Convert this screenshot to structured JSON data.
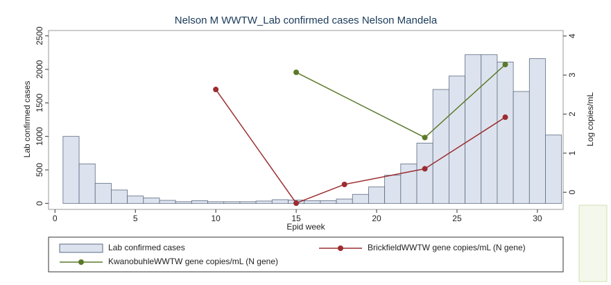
{
  "chart_data": {
    "type": "bar-line",
    "title": "Nelson M WWTW_Lab confirmed cases Nelson Mandela",
    "xlabel": "Epid week",
    "ylabel": "Lab confirmed cases",
    "y2label": "Log copies/mL",
    "xlim": [
      -0.4,
      31.6
    ],
    "xticks": [
      0,
      5,
      10,
      15,
      20,
      25,
      30
    ],
    "ylim": [
      -90,
      2580
    ],
    "yticks": [
      0,
      500,
      1000,
      1500,
      2000,
      2500
    ],
    "y2lim": [
      -0.44,
      4.14
    ],
    "y2ticks": [
      0,
      1,
      2,
      3,
      4
    ],
    "series": [
      {
        "name": "Lab confirmed cases",
        "kind": "bar",
        "color": "#dde3ee",
        "x": [
          1,
          2,
          3,
          4,
          5,
          6,
          7,
          8,
          9,
          10,
          11,
          12,
          13,
          14,
          15,
          16,
          17,
          18,
          19,
          20,
          21,
          22,
          23,
          24,
          25,
          26,
          27,
          28,
          29,
          30,
          31
        ],
        "values": [
          1000,
          590,
          300,
          200,
          110,
          80,
          45,
          25,
          40,
          25,
          25,
          25,
          35,
          55,
          50,
          40,
          40,
          65,
          135,
          245,
          420,
          590,
          900,
          1700,
          1900,
          2220,
          2220,
          2110,
          1670,
          2160,
          1020
        ]
      },
      {
        "name": "BrickfieldWWTW gene copies/mL (N gene)",
        "kind": "line",
        "axis": "y2",
        "color": "#9b2d30",
        "x": [
          10,
          15,
          18,
          23,
          28
        ],
        "values": [
          2.63,
          -0.28,
          0.2,
          0.6,
          1.92
        ]
      },
      {
        "name": "KwanobuhleWWTW gene copies/mL (N gene)",
        "kind": "line",
        "axis": "y2",
        "color": "#5a7a2a",
        "x": [
          15,
          23,
          28
        ],
        "values": [
          3.07,
          1.4,
          3.27
        ]
      }
    ]
  }
}
